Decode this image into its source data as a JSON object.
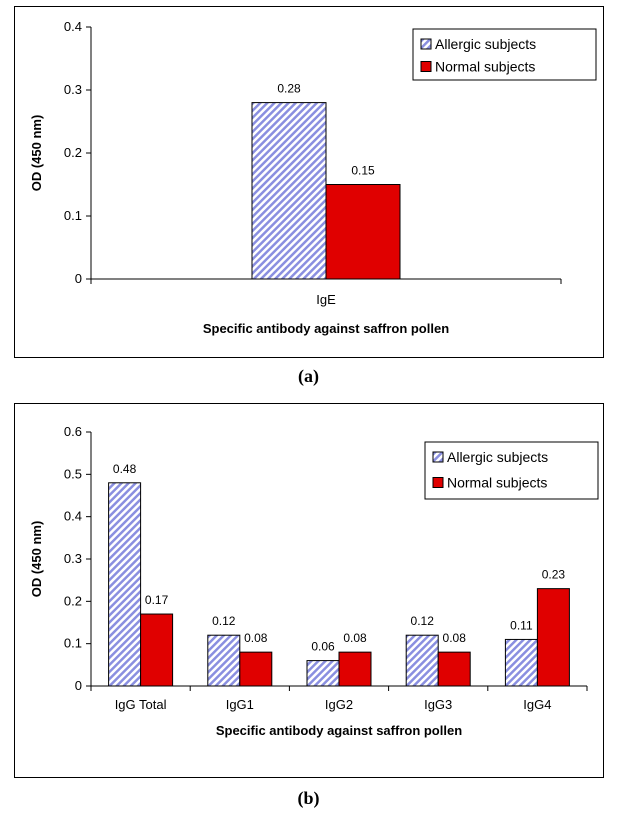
{
  "colors": {
    "allergic_fill": "#8a8fe0",
    "normal_fill": "#e00000",
    "axis": "#000000"
  },
  "chart_data": [
    {
      "type": "bar",
      "panel_label": "(a)",
      "categories": [
        "IgE"
      ],
      "series": [
        {
          "name": "Allergic subjects",
          "values": [
            0.28
          ],
          "pattern": "diagonal-hatch"
        },
        {
          "name": "Normal subjects",
          "values": [
            0.15
          ],
          "pattern": "solid"
        }
      ],
      "data_labels": [
        [
          "0.28"
        ],
        [
          "0.15"
        ]
      ],
      "xlabel": "Specific antibody against saffron pollen",
      "ylabel": "OD (450 nm)",
      "ylim": [
        0,
        0.4
      ],
      "yticks": [
        "0",
        "0.1",
        "0.2",
        "0.3",
        "0.4"
      ],
      "grid": false,
      "legend_position": "top-right"
    },
    {
      "type": "bar",
      "panel_label": "(b)",
      "categories": [
        "IgG Total",
        "IgG1",
        "IgG2",
        "IgG3",
        "IgG4"
      ],
      "series": [
        {
          "name": "Allergic subjects",
          "values": [
            0.48,
            0.12,
            0.06,
            0.12,
            0.11
          ],
          "pattern": "diagonal-hatch"
        },
        {
          "name": "Normal subjects",
          "values": [
            0.17,
            0.08,
            0.08,
            0.08,
            0.23
          ],
          "pattern": "solid"
        }
      ],
      "data_labels": [
        [
          "0.48",
          "0.12",
          "0.06",
          "0.12",
          "0.11"
        ],
        [
          "0.17",
          "0.08",
          "0.08",
          "0.08",
          "0.23"
        ]
      ],
      "xlabel": "Specific antibody against saffron pollen",
      "ylabel": "OD (450 nm)",
      "ylim": [
        0,
        0.6
      ],
      "yticks": [
        "0",
        "0.1",
        "0.2",
        "0.3",
        "0.4",
        "0.5",
        "0.6"
      ],
      "grid": false,
      "legend_position": "top-right"
    }
  ]
}
